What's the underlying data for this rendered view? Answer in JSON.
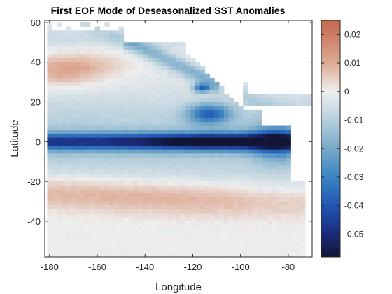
{
  "chart_data": {
    "type": "heatmap",
    "title": "First EOF Mode of Deseasonalized SST Anomalies",
    "xlabel": "Longitude",
    "ylabel": "Latitude",
    "xlim": [
      -182,
      -70
    ],
    "ylim": [
      -58,
      61
    ],
    "xticks": [
      -180,
      -160,
      -140,
      -120,
      -100,
      -80
    ],
    "yticks": [
      -40,
      -20,
      0,
      20,
      40,
      60
    ],
    "colorbar": {
      "range": [
        -0.058,
        0.025
      ],
      "ticks": [
        0.02,
        0.01,
        0,
        -0.01,
        -0.02,
        -0.03,
        -0.04,
        -0.05
      ],
      "tick_labels": [
        "0.02",
        "0.01",
        "0",
        "-0.01",
        "-0.02",
        "-0.03",
        "-0.04",
        "-0.05"
      ],
      "colormap": [
        [
          -0.058,
          "#121535"
        ],
        [
          -0.05,
          "#1a2b7a"
        ],
        [
          -0.04,
          "#2256b4"
        ],
        [
          -0.03,
          "#3a83c2"
        ],
        [
          -0.02,
          "#77a9c8"
        ],
        [
          -0.01,
          "#b6cfdc"
        ],
        [
          0.0,
          "#eeeeee"
        ],
        [
          0.01,
          "#ddab95"
        ],
        [
          0.02,
          "#cc7b62"
        ],
        [
          0.025,
          "#c46a50"
        ]
      ]
    },
    "features": {
      "equatorial_tongue": {
        "lat": 0,
        "lon_range": [
          -178,
          -78
        ],
        "min_value": -0.055
      },
      "north_pacific_warm": {
        "lat": 36,
        "lon_range": [
          -180,
          -140
        ],
        "max_value": 0.013
      },
      "south_pacific_warm": {
        "lat": -28,
        "lon_range": [
          -180,
          -85
        ],
        "max_value": 0.012
      }
    }
  }
}
